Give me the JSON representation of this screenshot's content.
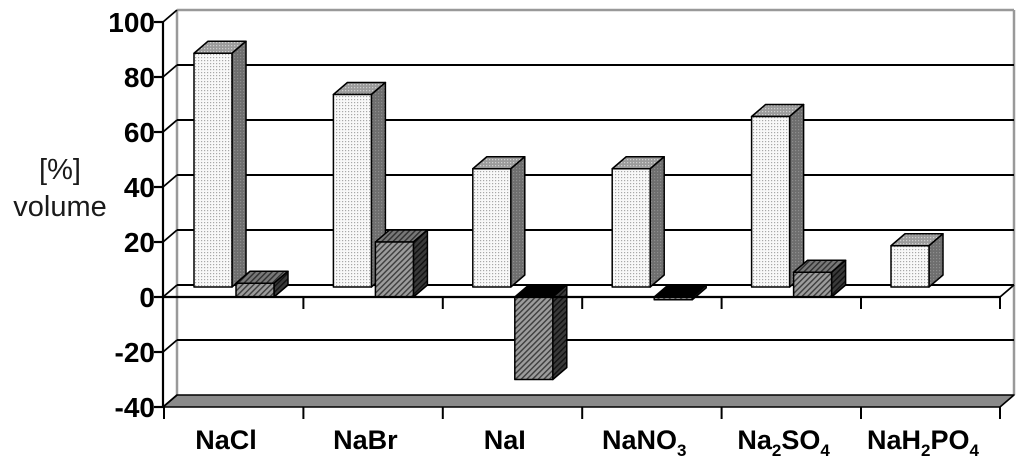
{
  "chart_data": {
    "type": "bar",
    "style": "3d-column-two-series",
    "title": "",
    "xlabel": "",
    "ylabel_lines": [
      "[%]",
      "volume"
    ],
    "categories": [
      "NaCl",
      "NaBr",
      "NaI",
      "NaNO₃",
      "Na₂SO₄",
      "NaH₂PO₄"
    ],
    "series": [
      {
        "name": "series-1-light-dotted",
        "values": [
          85,
          70,
          43,
          43,
          62,
          15
        ]
      },
      {
        "name": "series-2-dark-hatched",
        "values": [
          5,
          20,
          -30,
          -1,
          9,
          0
        ]
      }
    ],
    "yticks": [
      100,
      80,
      60,
      40,
      20,
      0,
      -20,
      -40
    ],
    "ylim": [
      -40,
      100
    ],
    "grid": "horizontal-back-wall",
    "legend": "none",
    "colors": {
      "background": "#ffffff",
      "gridline": "#000000",
      "axis": "#000000",
      "wall_border": "#999999",
      "floor": "#8a8a8a",
      "bar1_face": "#f8f8f8",
      "bar1_dot": "#a8a8a8",
      "bar1_top": "#9b9b9b",
      "bar1_top_dot": "#cfcfcf",
      "bar1_side": "#6e6e6e",
      "bar1_side_dot": "#8d8d8d",
      "bar2_face": "#9c9c9c",
      "bar2_hatch": "#3c3c3c",
      "bar2_top": "#787878",
      "bar2_top_hatch": "#2e2e2e",
      "bar2_side": "#3a3a3a",
      "bar2_side_hatch": "#111111",
      "negative_cap": "#000000"
    }
  }
}
